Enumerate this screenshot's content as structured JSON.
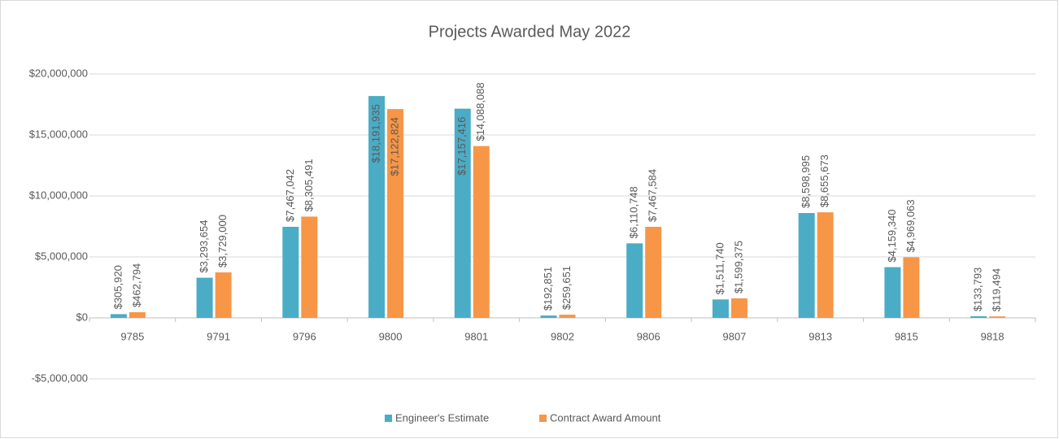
{
  "chart_data": {
    "type": "bar",
    "title": "Projects Awarded May 2022",
    "categories": [
      "9785",
      "9791",
      "9796",
      "9800",
      "9801",
      "9802",
      "9806",
      "9807",
      "9813",
      "9815",
      "9818"
    ],
    "series": [
      {
        "name": "Engineer's Estimate",
        "color": "#4bacc6",
        "values": [
          305920,
          3293654,
          7467042,
          18191935,
          17157416,
          192851,
          6110748,
          1511740,
          8598995,
          4159340,
          133793
        ],
        "value_labels": [
          "$305,920",
          "$3,293,654",
          "$7,467,042",
          "$18,191,935",
          "$17,157,416",
          "$192,851",
          "$6,110,748",
          "$1,511,740",
          "$8,598,995",
          "$4,159,340",
          "$133,793"
        ]
      },
      {
        "name": "Contract Award Amount",
        "color": "#f79646",
        "values": [
          462794,
          3729000,
          8305491,
          17122824,
          14088088,
          259651,
          7467584,
          1599375,
          8655673,
          4969063,
          119494
        ],
        "value_labels": [
          "$462,794",
          "$3,729,000",
          "$8,305,491",
          "$17,122,824",
          "$14,088,088",
          "$259,651",
          "$7,467,584",
          "$1,599,375",
          "$8,655,673",
          "$4,969,063",
          "$119,494"
        ]
      }
    ],
    "ylim": [
      -5000000,
      20000000
    ],
    "yticks": [
      {
        "value": -5000000,
        "label": "-$5,000,000"
      },
      {
        "value": 0,
        "label": "$0"
      },
      {
        "value": 5000000,
        "label": "$5,000,000"
      },
      {
        "value": 10000000,
        "label": "$10,000,000"
      },
      {
        "value": 15000000,
        "label": "$15,000,000"
      },
      {
        "value": 20000000,
        "label": "$20,000,000"
      }
    ],
    "grid": true,
    "legend": "bottom"
  }
}
